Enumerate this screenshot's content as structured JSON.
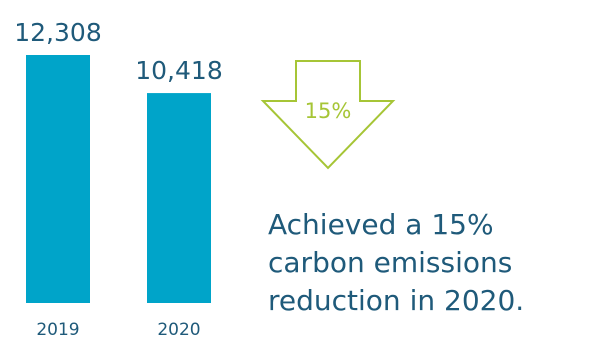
{
  "colors": {
    "bar": "#00a4c9",
    "text": "#1f5a7a",
    "accent": "#a6c536"
  },
  "chart_data": {
    "type": "bar",
    "categories": [
      "2019",
      "2020"
    ],
    "values": [
      12308,
      10418
    ],
    "value_labels": [
      "12,308",
      "10,418"
    ],
    "title": "",
    "xlabel": "",
    "ylabel": "",
    "ylim": [
      0,
      12308
    ],
    "grid": false
  },
  "callout": {
    "arrow_label": "15%",
    "icon": "down-arrow-icon"
  },
  "headline": {
    "lines": [
      "Achieved a 15%",
      "carbon emissions",
      "reduction in 2020."
    ]
  }
}
